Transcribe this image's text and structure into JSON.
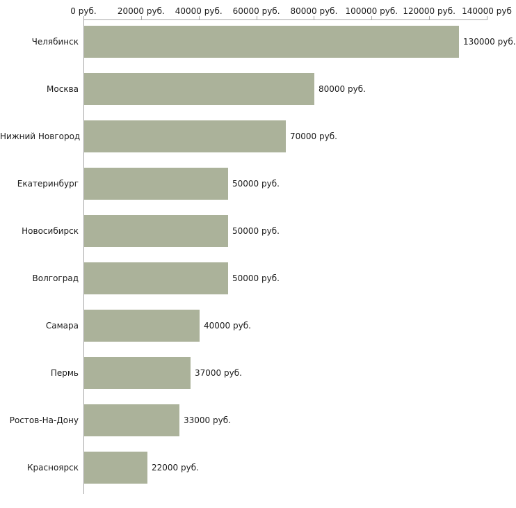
{
  "chart_data": {
    "type": "bar",
    "orientation": "horizontal",
    "title": "",
    "xlabel": "",
    "ylabel": "",
    "categories": [
      "Челябинск",
      "Москва",
      "Нижний Новгород",
      "Екатеринбург",
      "Новосибирск",
      "Волгоград",
      "Самара",
      "Пермь",
      "Ростов-На-Дону",
      "Красноярск"
    ],
    "values": [
      130000,
      80000,
      70000,
      50000,
      50000,
      50000,
      40000,
      37000,
      33000,
      22000
    ],
    "value_labels": [
      "130000 руб.",
      "80000 руб.",
      "70000 руб.",
      "50000 руб.",
      "50000 руб.",
      "50000 руб.",
      "40000 руб.",
      "37000 руб.",
      "33000 руб.",
      "22000 руб."
    ],
    "x_ticks": [
      0,
      20000,
      40000,
      60000,
      80000,
      100000,
      120000,
      140000
    ],
    "x_tick_labels": [
      "0 руб.",
      "20000 руб.",
      "40000 руб.",
      "60000 руб.",
      "80000 руб.",
      "100000 руб.",
      "120000 руб.",
      "140000 руб"
    ],
    "xlim": [
      0,
      140000
    ],
    "grid": false,
    "legend": false,
    "bar_color": "#abb29a",
    "axis_color": "#a6a6a6",
    "text_color": "#1a1a1a",
    "background_color": "#ffffff"
  }
}
